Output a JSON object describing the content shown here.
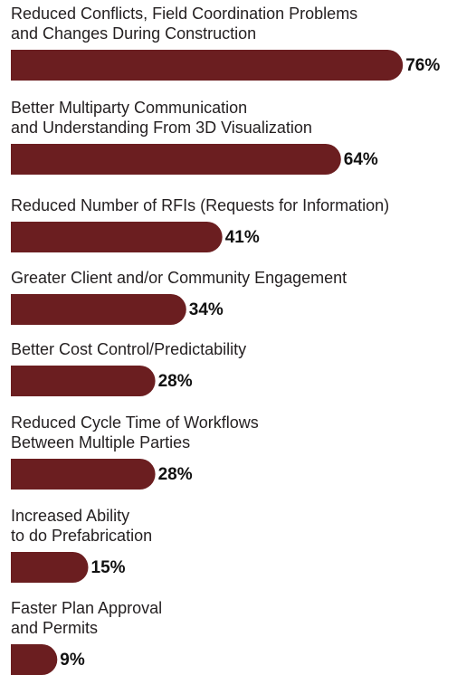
{
  "chart_data": {
    "type": "bar",
    "orientation": "horizontal",
    "color": "#6b1e20",
    "categories": [
      [
        "Reduced Conflicts, Field Coordination Problems",
        "and Changes During Construction"
      ],
      [
        "Better Multiparty Communication",
        "and Understanding From 3D Visualization"
      ],
      [
        "Reduced Number of RFIs (Requests for Information)"
      ],
      [
        "Greater Client and/or Community Engagement"
      ],
      [
        "Better Cost Control/Predictability"
      ],
      [
        "Reduced Cycle Time of Workflows",
        "Between Multiple Parties"
      ],
      [
        "Increased Ability",
        "to do Prefabrication"
      ],
      [
        "Faster Plan Approval",
        "and Permits"
      ]
    ],
    "values": [
      76,
      64,
      41,
      34,
      28,
      28,
      15,
      9
    ],
    "value_labels": [
      "76%",
      "64%",
      "41%",
      "34%",
      "28%",
      "28%",
      "15%",
      "9%"
    ]
  }
}
